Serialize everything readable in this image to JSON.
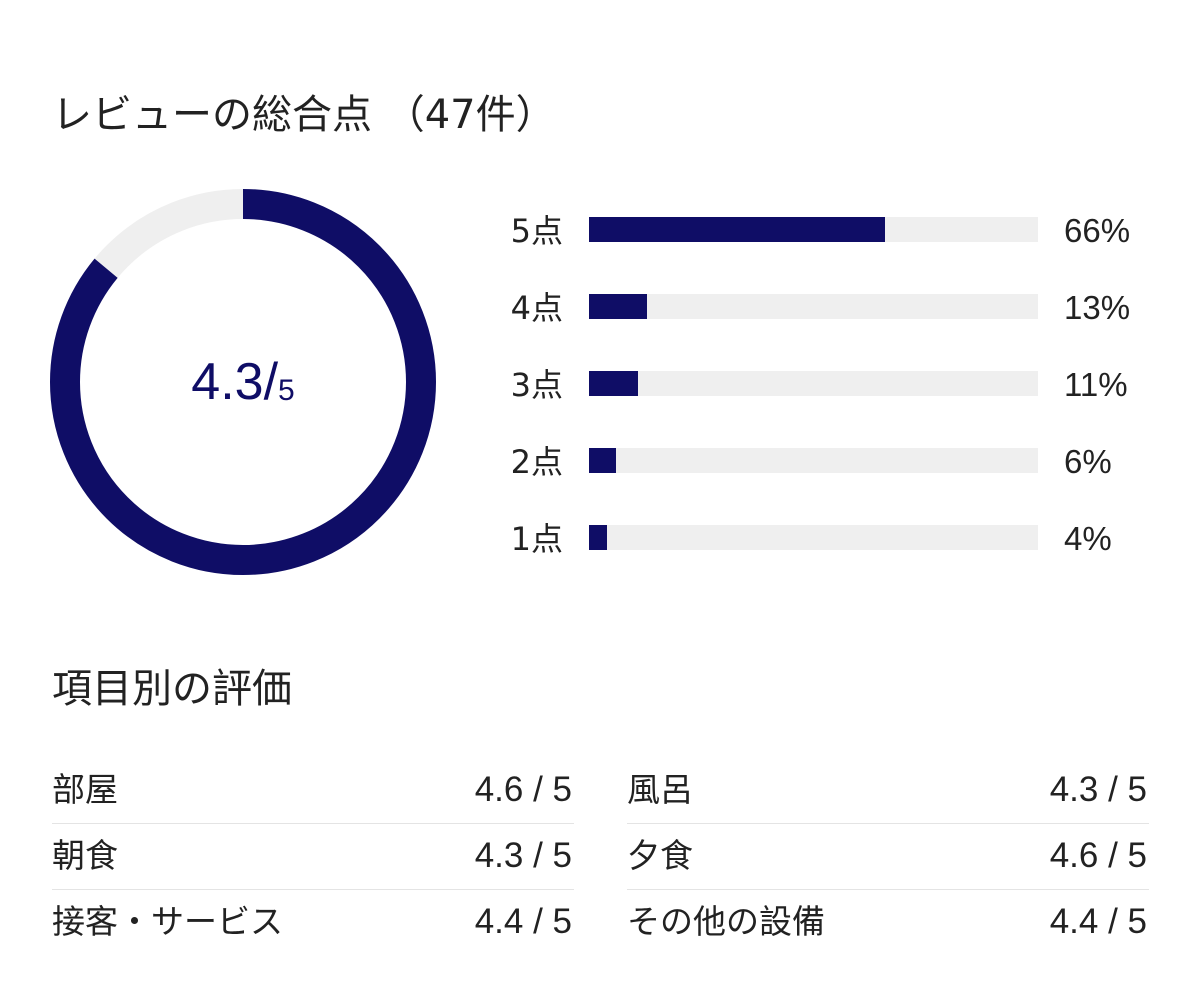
{
  "summary": {
    "title": "レビューの総合点 （47件）",
    "score": "4.3",
    "separator": "/",
    "max": "5",
    "score_fraction": 0.86
  },
  "distribution": [
    {
      "label": "5点",
      "percent_text": "66%",
      "percent": 66
    },
    {
      "label": "4点",
      "percent_text": "13%",
      "percent": 13
    },
    {
      "label": "3点",
      "percent_text": "11%",
      "percent": 11
    },
    {
      "label": "2点",
      "percent_text": "6%",
      "percent": 6
    },
    {
      "label": "1点",
      "percent_text": "4%",
      "percent": 4
    }
  ],
  "categories": {
    "title": "項目別の評価",
    "left": [
      {
        "name": "部屋",
        "score": "4.6 / 5"
      },
      {
        "name": "朝食",
        "score": "4.3 / 5"
      },
      {
        "name": "接客・サービス",
        "score": "4.4 / 5"
      }
    ],
    "right": [
      {
        "name": "風呂",
        "score": "4.3 / 5"
      },
      {
        "name": "夕食",
        "score": "4.6 / 5"
      },
      {
        "name": "その他の設備",
        "score": "4.4 / 5"
      }
    ]
  },
  "colors": {
    "accent": "#0f0d66",
    "track": "#efefef",
    "text": "#222222",
    "divider": "#e4e4e4"
  }
}
